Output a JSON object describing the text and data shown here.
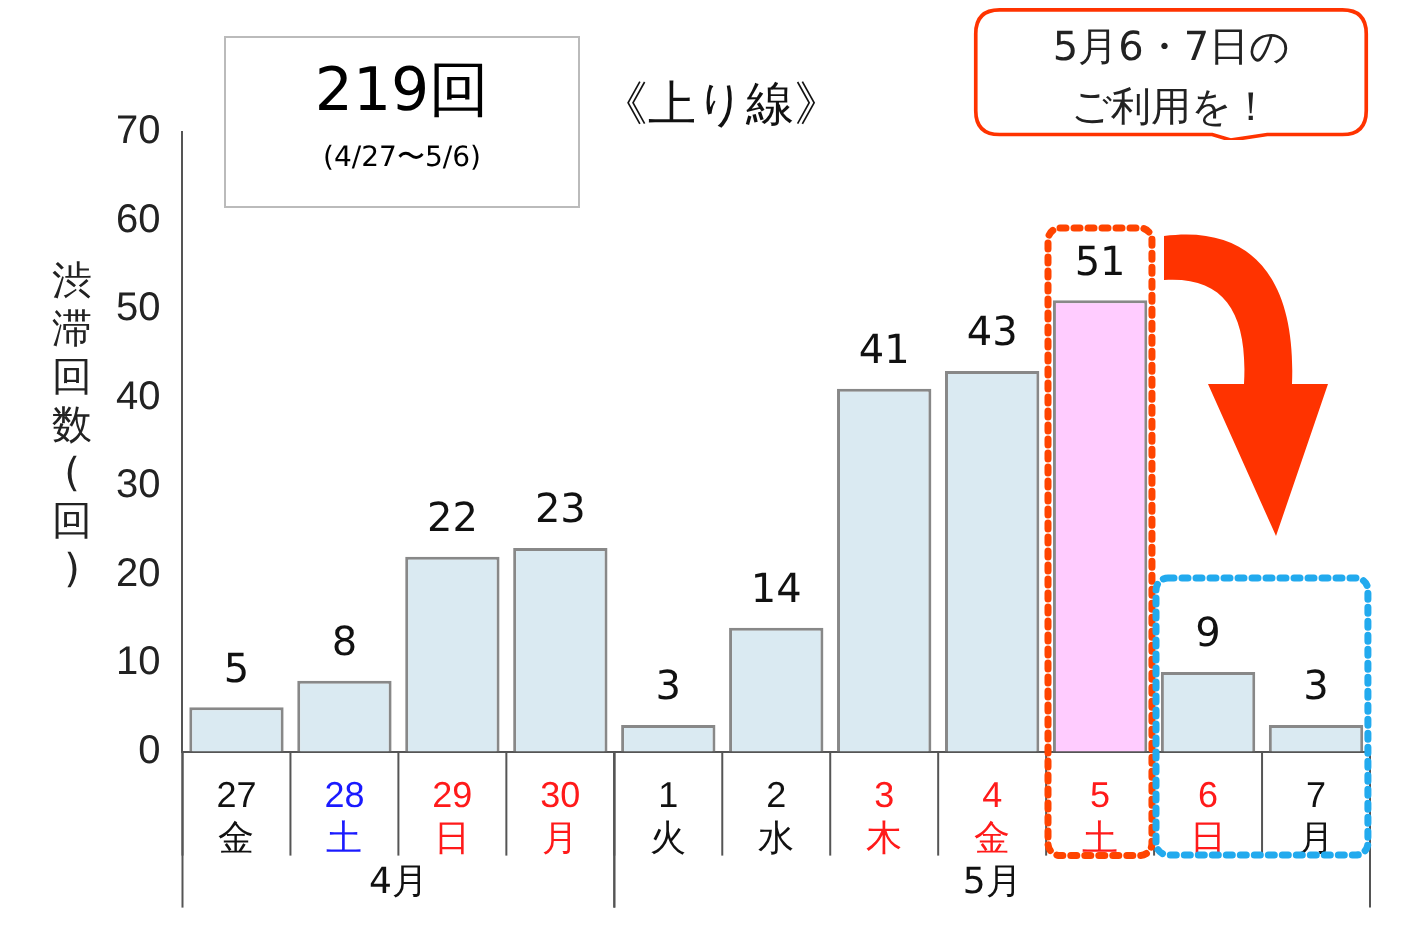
{
  "chart_data": {
    "type": "bar",
    "title": "《上り線》",
    "ylabel": "渋滞回数(回)",
    "categories": [
      "27\n金",
      "28\n土",
      "29\n日",
      "30\n月",
      "1\n火",
      "2\n水",
      "3\n木",
      "4\n金",
      "5\n土",
      "6\n日",
      "7\n月"
    ],
    "values": [
      5,
      8,
      22,
      23,
      3,
      14,
      41,
      43,
      51,
      9,
      3
    ],
    "colors": [
      "#daeaf2",
      "#daeaf2",
      "#daeaf2",
      "#daeaf2",
      "#daeaf2",
      "#daeaf2",
      "#daeaf2",
      "#daeaf2",
      "#ffccff",
      "#daeaf2",
      "#daeaf2"
    ],
    "ylim": [
      0,
      70
    ],
    "yticks": [
      0,
      10,
      20,
      30,
      40,
      50,
      60,
      70
    ],
    "grid": false,
    "legend": false,
    "data_labels": true,
    "annotations": [
      "219回",
      "(4/27〜5/6)",
      "5月6・7日のご利用を！",
      "4月",
      "5月"
    ]
  }
}
